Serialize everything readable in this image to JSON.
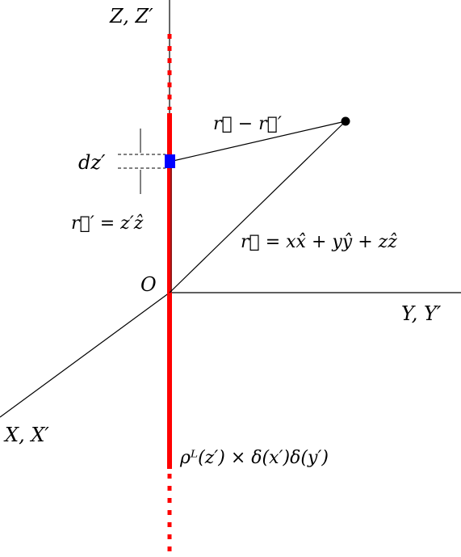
{
  "labels": {
    "z_axis": "Z, Z′",
    "y_axis": "Y, Y′",
    "x_axis": "X, X′",
    "origin": "O",
    "dz": "dz′",
    "r_prime": "r⃗′ = z′ẑ",
    "r_minus_r_prime": "r⃗ − r⃗′",
    "r_vector": "r⃗ = xx̂ + yŷ + zẑ",
    "line_charge": "ρᴸ(z′) × δ(x′)δ(y′)"
  },
  "colors": {
    "line_charge": "#ff0000",
    "element": "#0000ff",
    "axes": "#000000",
    "point": "#000000"
  }
}
